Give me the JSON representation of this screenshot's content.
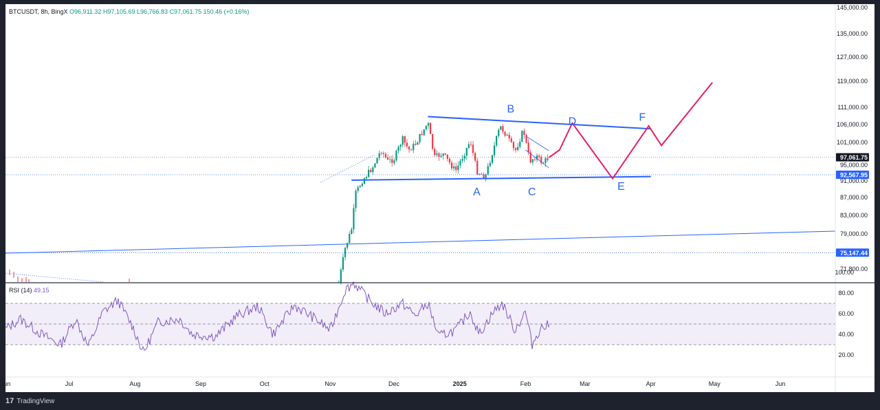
{
  "header": {
    "symbol": "BTCUSDT, 8h, BingX",
    "open": "O96,911.32",
    "high": "H97,105.69",
    "low": "L96,766.83",
    "close": "C97,061.75",
    "change": "150.46 (+0.16%)"
  },
  "rsi_header": {
    "label": "RSI (14)",
    "value": "49.15"
  },
  "branding": {
    "logo": "17",
    "name": "TradingView"
  },
  "colors": {
    "pattern_line": "#2962ff",
    "projection": "#e91e63",
    "wave_label": "#2962ff",
    "rsi_line": "#7e57c2",
    "up_candle": "#089981",
    "down_candle": "#f23645"
  },
  "chart_data": [
    {
      "type": "candlestick",
      "symbol": "BTCUSDT",
      "timeframe": "8h",
      "exchange": "BingX",
      "x_ticks": [
        "Jun",
        "Jul",
        "Aug",
        "Sep",
        "Oct",
        "Nov",
        "Dec",
        "2025",
        "Feb",
        "Mar",
        "Apr",
        "May",
        "Jun"
      ],
      "y_ticks": [
        "145,000.00",
        "135,000.00",
        "127,000.00",
        "119,000.00",
        "111,000.00",
        "106,000.00",
        "101,000.00",
        "95,000.00",
        "91,000.00",
        "87,000.00",
        "83,000.00",
        "79,000.00",
        "71,800.00"
      ],
      "price_labels": [
        {
          "text": "97,061.75",
          "value": 97061.75,
          "style": "last-price"
        },
        {
          "text": "92,567.95",
          "value": 92567.95,
          "style": "level"
        },
        {
          "text": "75,147.44",
          "value": 75147.44,
          "style": "level"
        }
      ],
      "pattern": {
        "upper_trendline": [
          {
            "date": "2024-12-17",
            "price": 108300
          },
          {
            "date": "2025-04-01",
            "price": 104800
          }
        ],
        "lower_trendline": [
          {
            "date": "2024-11-11",
            "price": 91200
          },
          {
            "date": "2025-04-01",
            "price": 92100
          }
        ],
        "wave_labels": [
          {
            "label": "A",
            "date": "2025-01-09",
            "price": 87500
          },
          {
            "label": "B",
            "date": "2025-01-25",
            "price": 109500
          },
          {
            "label": "C",
            "date": "2025-02-04",
            "price": 87500
          },
          {
            "label": "D",
            "date": "2025-02-23",
            "price": 105900
          },
          {
            "label": "E",
            "date": "2025-03-18",
            "price": 88800
          },
          {
            "label": "F",
            "date": "2025-03-28",
            "price": 107100
          }
        ],
        "projection_path": [
          {
            "date": "2025-02-12",
            "price": 97000
          },
          {
            "date": "2025-02-17",
            "price": 99000
          },
          {
            "date": "2025-02-23",
            "price": 106400
          },
          {
            "date": "2025-03-14",
            "price": 91600
          },
          {
            "date": "2025-03-31",
            "price": 105600
          },
          {
            "date": "2025-04-06",
            "price": 100200
          },
          {
            "date": "2025-04-30",
            "price": 118600
          }
        ]
      },
      "series": [
        {
          "values": [
            {
              "date": "2024-11-05",
              "price": 69000
            },
            {
              "date": "2024-11-08",
              "price": 76000
            },
            {
              "date": "2024-11-11",
              "price": 80000
            },
            {
              "date": "2024-11-13",
              "price": 88000
            },
            {
              "date": "2024-11-16",
              "price": 91000
            },
            {
              "date": "2024-11-21",
              "price": 94500
            },
            {
              "date": "2024-11-25",
              "price": 99000
            },
            {
              "date": "2024-11-28",
              "price": 96000
            },
            {
              "date": "2024-12-01",
              "price": 96500
            },
            {
              "date": "2024-12-05",
              "price": 102000
            },
            {
              "date": "2024-12-08",
              "price": 99000
            },
            {
              "date": "2024-12-11",
              "price": 100500
            },
            {
              "date": "2024-12-17",
              "price": 106500
            },
            {
              "date": "2024-12-20",
              "price": 97000
            },
            {
              "date": "2024-12-24",
              "price": 98000
            },
            {
              "date": "2024-12-30",
              "price": 93500
            },
            {
              "date": "2025-01-06",
              "price": 101500
            },
            {
              "date": "2025-01-09",
              "price": 93500
            },
            {
              "date": "2025-01-13",
              "price": 92000
            },
            {
              "date": "2025-01-20",
              "price": 105500
            },
            {
              "date": "2025-01-23",
              "price": 103000
            },
            {
              "date": "2025-01-27",
              "price": 98500
            },
            {
              "date": "2025-01-31",
              "price": 104500
            },
            {
              "date": "2025-02-03",
              "price": 96000
            },
            {
              "date": "2025-02-06",
              "price": 97500
            },
            {
              "date": "2025-02-09",
              "price": 95500
            },
            {
              "date": "2025-02-12",
              "price": 97061.75
            }
          ]
        }
      ]
    },
    {
      "type": "line",
      "name": "RSI (14)",
      "y_ticks": [
        "100.00",
        "80.00",
        "60.00",
        "40.00",
        "20.00"
      ],
      "band": [
        30,
        70
      ],
      "midline": 50,
      "series": [
        {
          "values": [
            {
              "date": "2024-06-01",
              "value": 45
            },
            {
              "date": "2024-06-08",
              "value": 55
            },
            {
              "date": "2024-06-18",
              "value": 40
            },
            {
              "date": "2024-06-27",
              "value": 30
            },
            {
              "date": "2024-07-04",
              "value": 55
            },
            {
              "date": "2024-07-10",
              "value": 28
            },
            {
              "date": "2024-07-17",
              "value": 62
            },
            {
              "date": "2024-07-24",
              "value": 73
            },
            {
              "date": "2024-07-31",
              "value": 47
            },
            {
              "date": "2024-08-05",
              "value": 22
            },
            {
              "date": "2024-08-12",
              "value": 52
            },
            {
              "date": "2024-08-22",
              "value": 55
            },
            {
              "date": "2024-08-28",
              "value": 40
            },
            {
              "date": "2024-09-08",
              "value": 38
            },
            {
              "date": "2024-09-18",
              "value": 58
            },
            {
              "date": "2024-09-28",
              "value": 67
            },
            {
              "date": "2024-10-05",
              "value": 40
            },
            {
              "date": "2024-10-15",
              "value": 68
            },
            {
              "date": "2024-10-25",
              "value": 55
            },
            {
              "date": "2024-11-01",
              "value": 44
            },
            {
              "date": "2024-11-08",
              "value": 83
            },
            {
              "date": "2024-11-12",
              "value": 90
            },
            {
              "date": "2024-11-20",
              "value": 72
            },
            {
              "date": "2024-11-27",
              "value": 60
            },
            {
              "date": "2024-12-05",
              "value": 70
            },
            {
              "date": "2024-12-11",
              "value": 58
            },
            {
              "date": "2024-12-17",
              "value": 70
            },
            {
              "date": "2024-12-22",
              "value": 38
            },
            {
              "date": "2024-12-30",
              "value": 44
            },
            {
              "date": "2025-01-06",
              "value": 62
            },
            {
              "date": "2025-01-10",
              "value": 40
            },
            {
              "date": "2025-01-17",
              "value": 62
            },
            {
              "date": "2025-01-21",
              "value": 70
            },
            {
              "date": "2025-01-27",
              "value": 44
            },
            {
              "date": "2025-02-01",
              "value": 62
            },
            {
              "date": "2025-02-04",
              "value": 30
            },
            {
              "date": "2025-02-08",
              "value": 46
            },
            {
              "date": "2025-02-12",
              "value": 49.15
            }
          ]
        }
      ]
    }
  ]
}
